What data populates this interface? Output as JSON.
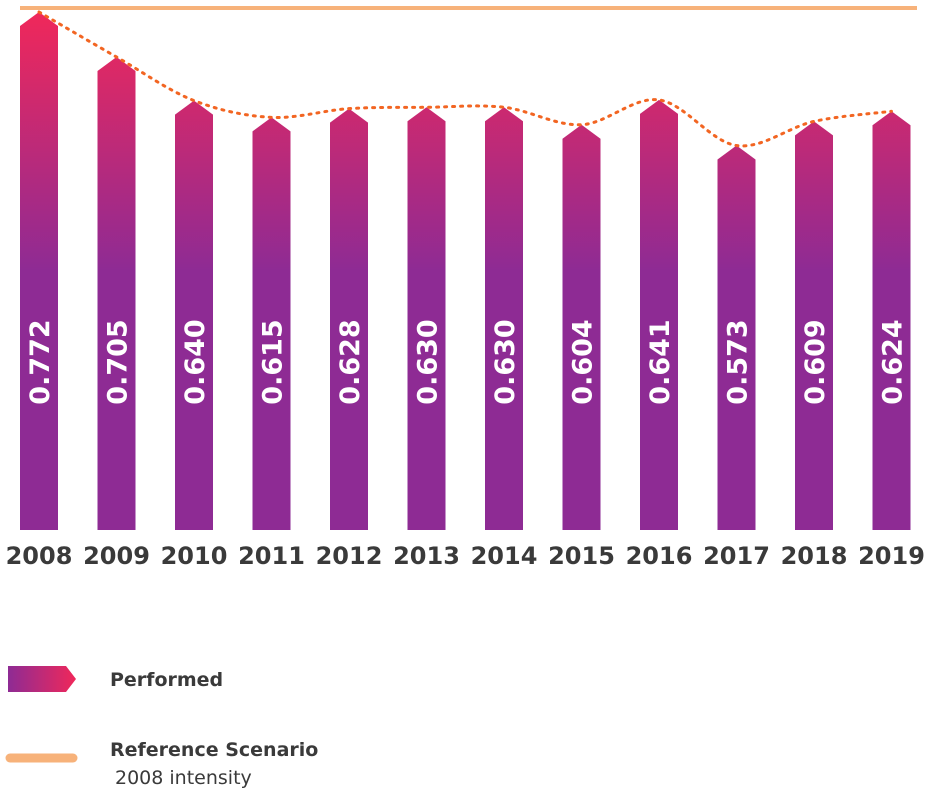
{
  "chart_data": {
    "type": "bar",
    "categories": [
      "2008",
      "2009",
      "2010",
      "2011",
      "2012",
      "2013",
      "2014",
      "2015",
      "2016",
      "2017",
      "2018",
      "2019"
    ],
    "series": [
      {
        "name": "Performed",
        "values": [
          0.772,
          0.705,
          0.64,
          0.615,
          0.628,
          0.63,
          0.63,
          0.604,
          0.641,
          0.573,
          0.609,
          0.624
        ]
      }
    ],
    "reference_line": {
      "name": "Reference Scenario",
      "note": "2008 intensity",
      "value": 0.772
    },
    "trend_line": "dotted",
    "ylim": [
      0,
      0.772
    ],
    "grid": false,
    "legend_position": "bottom-left"
  },
  "colors": {
    "bar_top": "#f0285a",
    "bar_bottom": "#8e2b94",
    "reference_line": "#f7b27a",
    "trend_line": "#f26522",
    "text": "#3a3a3a"
  }
}
